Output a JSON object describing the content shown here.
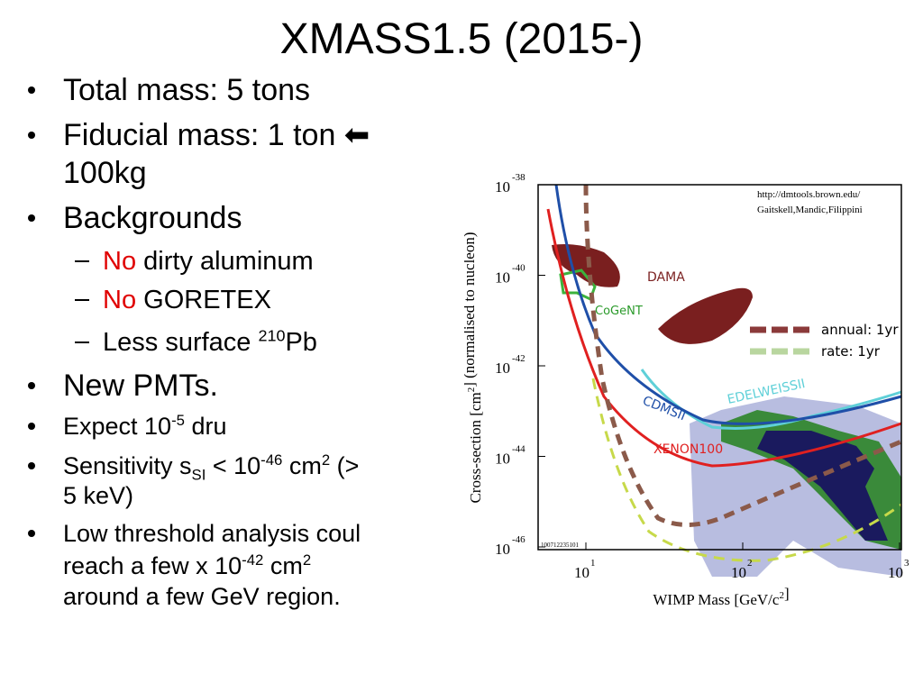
{
  "title": "XMASS1.5 (2015-)",
  "bullets": [
    {
      "level": 1,
      "size": "large",
      "lines": [
        [
          "Total mass: 5 tons"
        ]
      ]
    },
    {
      "level": 1,
      "size": "large",
      "lines": [
        [
          "Fiducial mass: 1 ton ⬅"
        ],
        [
          "100kg"
        ]
      ]
    },
    {
      "level": 1,
      "size": "large",
      "lines": [
        [
          "Backgrounds"
        ]
      ]
    },
    {
      "level": 2,
      "lines": [
        [
          {
            "red": "No"
          },
          " dirty aluminum"
        ]
      ]
    },
    {
      "level": 2,
      "lines": [
        [
          {
            "red": "No"
          },
          " GORETEX"
        ]
      ]
    },
    {
      "level": 2,
      "lines": [
        [
          "Less surface ",
          {
            "sup": "210"
          },
          "Pb"
        ]
      ]
    },
    {
      "level": 1,
      "size": "large",
      "lines": [
        [
          "New PMTs."
        ]
      ]
    },
    {
      "level": 1,
      "size": "small",
      "lines": [
        [
          "Expect 10",
          {
            "sup": "-5"
          },
          " dru"
        ]
      ]
    },
    {
      "level": 1,
      "size": "small",
      "lines": [
        [
          "Sensitivity s",
          {
            "sub": "SI"
          },
          " < 10",
          {
            "sup": "-46"
          },
          " cm",
          {
            "sup": "2"
          },
          " (>"
        ],
        [
          "5 keV)"
        ]
      ]
    },
    {
      "level": 1,
      "size": "small",
      "lines": [
        [
          "Low threshold analysis coul"
        ],
        [
          "reach a few x 10",
          {
            "sup": "-42"
          },
          " cm",
          {
            "sup": "2"
          }
        ],
        [
          "around a few GeV region."
        ]
      ]
    }
  ],
  "figure": {
    "y_label": [
      "Cross-section [cm",
      {
        "sup": "2"
      },
      "] (normalised to nucleon)"
    ],
    "x_label": [
      "WIMP Mass [GeV/c",
      {
        "sup": "2"
      },
      "]"
    ],
    "y_ticks": [
      {
        "base": "10",
        "exp": "-38"
      },
      {
        "base": "10",
        "exp": "-40"
      },
      {
        "base": "10",
        "exp": "-42"
      },
      {
        "base": "10",
        "exp": "-44"
      },
      {
        "base": "10",
        "exp": "-46"
      }
    ],
    "x_ticks": [
      {
        "base": "10",
        "exp": "1"
      },
      {
        "base": "10",
        "exp": "2"
      },
      {
        "base": "10",
        "exp": "3"
      }
    ],
    "credit": [
      "http://dmtools.brown.edu/",
      "Gaitskell,Mandic,Filippini"
    ],
    "plot_id": "100712235101",
    "labels": {
      "dama": "DAMA",
      "cogent": "CoGeNT",
      "cdms": "CDMSII",
      "edelweiss": "EDELWEISSII",
      "xenon": "XENON100"
    },
    "legend": [
      {
        "name": "annual: 1yr",
        "color": "#8b3a3a"
      },
      {
        "name": "rate: 1yr",
        "color": "#b9d69f"
      }
    ]
  }
}
